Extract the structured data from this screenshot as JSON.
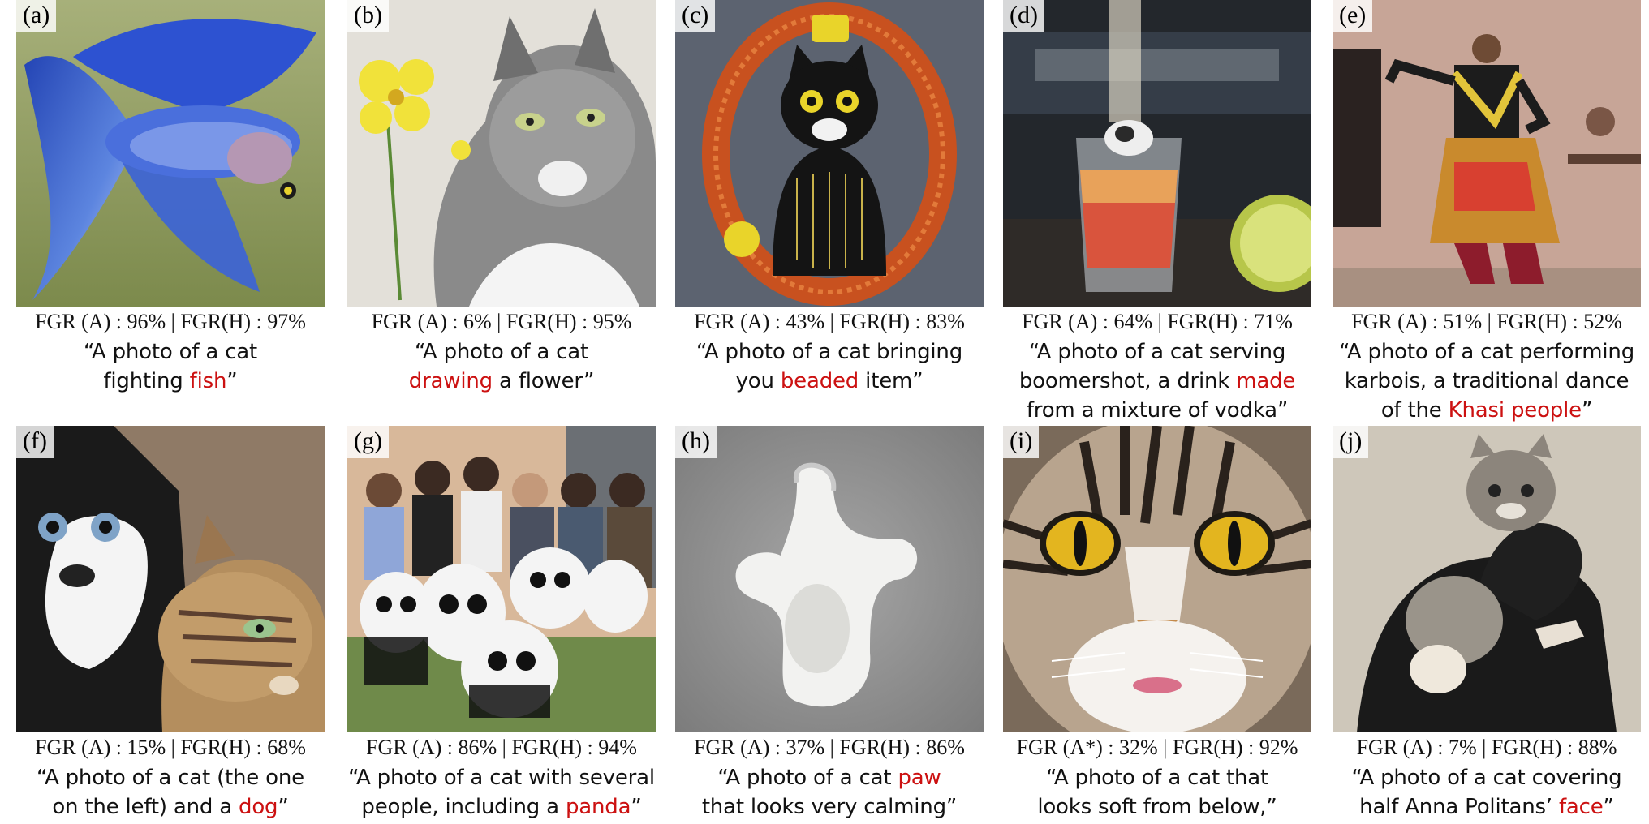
{
  "panels": [
    {
      "letter": "(a)",
      "metric": "FGR (A) : 96%  | FGR(H) : 97%",
      "caption": [
        [
          "“A photo of a cat",
          false
        ],
        [
          "\n",
          false
        ],
        [
          "fighting ",
          false
        ],
        [
          "fish",
          true
        ],
        [
          "”",
          false
        ]
      ],
      "image_subject": "blue betta fish"
    },
    {
      "letter": "(b)",
      "metric": "FGR (A) : 6%  | FGR(H) : 95%",
      "caption": [
        [
          "“A photo of a cat",
          false
        ],
        [
          "\n",
          false
        ],
        [
          "drawing",
          true
        ],
        [
          " a flower”",
          false
        ]
      ],
      "image_subject": "pencil drawing of cat with yellow flower"
    },
    {
      "letter": "(c)",
      "metric": "FGR (A) : 43%  | FGR(H) : 83%",
      "caption": [
        [
          "“A photo of a cat bringing",
          false
        ],
        [
          "\n",
          false
        ],
        [
          "you ",
          false
        ],
        [
          "beaded",
          true
        ],
        [
          " item”",
          false
        ]
      ],
      "image_subject": "beaded cat ornament"
    },
    {
      "letter": "(d)",
      "metric": "FGR (A) : 64%  | FGR(H) : 71%",
      "caption": [
        [
          "“A photo of a cat serving",
          false
        ],
        [
          "\n",
          false
        ],
        [
          "boomershot, a drink ",
          false
        ],
        [
          "made",
          true
        ],
        [
          "\n",
          false
        ],
        [
          "from a mixture of vodka”",
          false
        ]
      ],
      "image_subject": "cocktail glass with cat and lime"
    },
    {
      "letter": "(e)",
      "metric": "FGR (A) : 51%  | FGR(H) : 52%",
      "caption": [
        [
          "“A photo of a cat performing",
          false
        ],
        [
          "\n",
          false
        ],
        [
          "karbois, a traditional dance",
          false
        ],
        [
          "\n",
          false
        ],
        [
          "of the ",
          false
        ],
        [
          "Khasi people",
          true
        ],
        [
          "”",
          false
        ]
      ],
      "image_subject": "traditional dancer"
    },
    {
      "letter": "(f)",
      "metric": "FGR (A) : 15%  | FGR(H) : 68%",
      "caption": [
        [
          "“A photo of a cat (the one",
          false
        ],
        [
          "\n",
          false
        ],
        [
          "on the left) and a ",
          false
        ],
        [
          "dog",
          true
        ],
        [
          "”",
          false
        ]
      ],
      "image_subject": "two cats"
    },
    {
      "letter": "(g)",
      "metric": "FGR (A) : 86%  | FGR(H) : 94%",
      "caption": [
        [
          "“A photo of a cat with several",
          false
        ],
        [
          "\n",
          false
        ],
        [
          "people, including a ",
          false
        ],
        [
          "panda",
          true
        ],
        [
          "”",
          false
        ]
      ],
      "image_subject": "people with pandas"
    },
    {
      "letter": "(h)",
      "metric": "FGR (A) : 37%  | FGR(H) : 86%",
      "caption": [
        [
          "“A photo of a cat ",
          false
        ],
        [
          "paw",
          true
        ],
        [
          "\n",
          false
        ],
        [
          "that looks very calming”",
          false
        ]
      ],
      "image_subject": "white paw shape on grey"
    },
    {
      "letter": "(i)",
      "metric": "FGR (A*) : 32%  | FGR(H) : 92%",
      "caption": [
        [
          "“A photo of a cat that",
          false
        ],
        [
          "\n",
          false
        ],
        [
          "looks soft from below,”",
          false
        ]
      ],
      "image_subject": "close-up tabby cat face"
    },
    {
      "letter": "(j)",
      "metric": "FGR (A) : 7%  | FGR(H) : 88%",
      "caption": [
        [
          "“A photo of a cat covering",
          false
        ],
        [
          "\n",
          false
        ],
        [
          "half Anna Politans’ ",
          false
        ],
        [
          "face",
          true
        ],
        [
          "”",
          false
        ]
      ],
      "image_subject": "vintage photo of cat on person"
    }
  ],
  "highlight_color": "#cc1111"
}
